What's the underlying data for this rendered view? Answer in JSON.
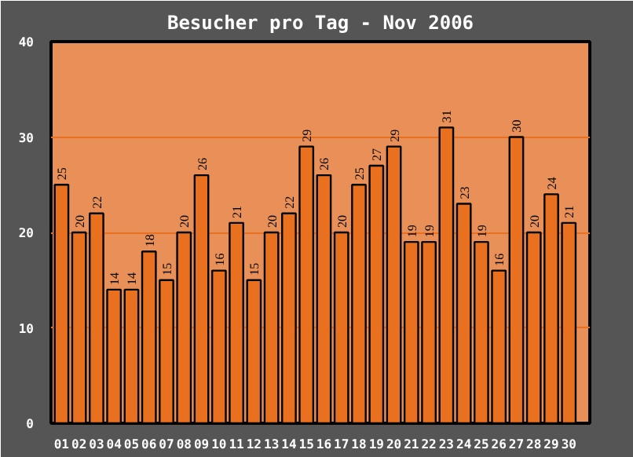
{
  "chart_data": {
    "type": "bar",
    "title": "Besucher pro Tag - Nov 2006",
    "categories": [
      "01",
      "02",
      "03",
      "04",
      "05",
      "06",
      "07",
      "08",
      "09",
      "10",
      "11",
      "12",
      "13",
      "14",
      "15",
      "16",
      "17",
      "18",
      "19",
      "20",
      "21",
      "22",
      "23",
      "24",
      "25",
      "26",
      "27",
      "28",
      "29",
      "30"
    ],
    "values": [
      25,
      20,
      22,
      14,
      14,
      18,
      15,
      20,
      26,
      16,
      21,
      15,
      20,
      22,
      29,
      26,
      20,
      25,
      27,
      29,
      19,
      19,
      31,
      23,
      19,
      16,
      30,
      20,
      24,
      21
    ],
    "color": "#e8701e",
    "ylim": [
      0,
      40
    ],
    "yticks": [
      0,
      10,
      20,
      30,
      40
    ],
    "grid": "y",
    "data_labels": true
  }
}
